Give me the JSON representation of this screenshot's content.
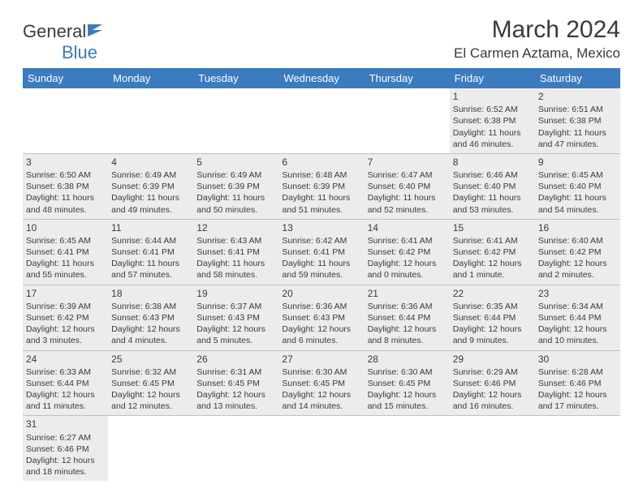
{
  "logo": {
    "word1": "General",
    "word2": "Blue"
  },
  "title": "March 2024",
  "location": "El Carmen Aztama, Mexico",
  "colors": {
    "header_bg": "#3b7bbf",
    "header_text": "#ffffff",
    "text": "#3a3a3a",
    "shaded_bg": "#ececec",
    "cell_border": "#b8c4d0",
    "logo_blue": "#3b7bbf"
  },
  "day_headers": [
    "Sunday",
    "Monday",
    "Tuesday",
    "Wednesday",
    "Thursday",
    "Friday",
    "Saturday"
  ],
  "weeks": [
    [
      null,
      null,
      null,
      null,
      null,
      {
        "n": "1",
        "sr": "Sunrise: 6:52 AM",
        "ss": "Sunset: 6:38 PM",
        "dl": "Daylight: 11 hours and 46 minutes."
      },
      {
        "n": "2",
        "sr": "Sunrise: 6:51 AM",
        "ss": "Sunset: 6:38 PM",
        "dl": "Daylight: 11 hours and 47 minutes."
      }
    ],
    [
      {
        "n": "3",
        "sr": "Sunrise: 6:50 AM",
        "ss": "Sunset: 6:38 PM",
        "dl": "Daylight: 11 hours and 48 minutes."
      },
      {
        "n": "4",
        "sr": "Sunrise: 6:49 AM",
        "ss": "Sunset: 6:39 PM",
        "dl": "Daylight: 11 hours and 49 minutes."
      },
      {
        "n": "5",
        "sr": "Sunrise: 6:49 AM",
        "ss": "Sunset: 6:39 PM",
        "dl": "Daylight: 11 hours and 50 minutes."
      },
      {
        "n": "6",
        "sr": "Sunrise: 6:48 AM",
        "ss": "Sunset: 6:39 PM",
        "dl": "Daylight: 11 hours and 51 minutes."
      },
      {
        "n": "7",
        "sr": "Sunrise: 6:47 AM",
        "ss": "Sunset: 6:40 PM",
        "dl": "Daylight: 11 hours and 52 minutes."
      },
      {
        "n": "8",
        "sr": "Sunrise: 6:46 AM",
        "ss": "Sunset: 6:40 PM",
        "dl": "Daylight: 11 hours and 53 minutes."
      },
      {
        "n": "9",
        "sr": "Sunrise: 6:45 AM",
        "ss": "Sunset: 6:40 PM",
        "dl": "Daylight: 11 hours and 54 minutes."
      }
    ],
    [
      {
        "n": "10",
        "sr": "Sunrise: 6:45 AM",
        "ss": "Sunset: 6:41 PM",
        "dl": "Daylight: 11 hours and 55 minutes."
      },
      {
        "n": "11",
        "sr": "Sunrise: 6:44 AM",
        "ss": "Sunset: 6:41 PM",
        "dl": "Daylight: 11 hours and 57 minutes."
      },
      {
        "n": "12",
        "sr": "Sunrise: 6:43 AM",
        "ss": "Sunset: 6:41 PM",
        "dl": "Daylight: 11 hours and 58 minutes."
      },
      {
        "n": "13",
        "sr": "Sunrise: 6:42 AM",
        "ss": "Sunset: 6:41 PM",
        "dl": "Daylight: 11 hours and 59 minutes."
      },
      {
        "n": "14",
        "sr": "Sunrise: 6:41 AM",
        "ss": "Sunset: 6:42 PM",
        "dl": "Daylight: 12 hours and 0 minutes."
      },
      {
        "n": "15",
        "sr": "Sunrise: 6:41 AM",
        "ss": "Sunset: 6:42 PM",
        "dl": "Daylight: 12 hours and 1 minute."
      },
      {
        "n": "16",
        "sr": "Sunrise: 6:40 AM",
        "ss": "Sunset: 6:42 PM",
        "dl": "Daylight: 12 hours and 2 minutes."
      }
    ],
    [
      {
        "n": "17",
        "sr": "Sunrise: 6:39 AM",
        "ss": "Sunset: 6:42 PM",
        "dl": "Daylight: 12 hours and 3 minutes."
      },
      {
        "n": "18",
        "sr": "Sunrise: 6:38 AM",
        "ss": "Sunset: 6:43 PM",
        "dl": "Daylight: 12 hours and 4 minutes."
      },
      {
        "n": "19",
        "sr": "Sunrise: 6:37 AM",
        "ss": "Sunset: 6:43 PM",
        "dl": "Daylight: 12 hours and 5 minutes."
      },
      {
        "n": "20",
        "sr": "Sunrise: 6:36 AM",
        "ss": "Sunset: 6:43 PM",
        "dl": "Daylight: 12 hours and 6 minutes."
      },
      {
        "n": "21",
        "sr": "Sunrise: 6:36 AM",
        "ss": "Sunset: 6:44 PM",
        "dl": "Daylight: 12 hours and 8 minutes."
      },
      {
        "n": "22",
        "sr": "Sunrise: 6:35 AM",
        "ss": "Sunset: 6:44 PM",
        "dl": "Daylight: 12 hours and 9 minutes."
      },
      {
        "n": "23",
        "sr": "Sunrise: 6:34 AM",
        "ss": "Sunset: 6:44 PM",
        "dl": "Daylight: 12 hours and 10 minutes."
      }
    ],
    [
      {
        "n": "24",
        "sr": "Sunrise: 6:33 AM",
        "ss": "Sunset: 6:44 PM",
        "dl": "Daylight: 12 hours and 11 minutes."
      },
      {
        "n": "25",
        "sr": "Sunrise: 6:32 AM",
        "ss": "Sunset: 6:45 PM",
        "dl": "Daylight: 12 hours and 12 minutes."
      },
      {
        "n": "26",
        "sr": "Sunrise: 6:31 AM",
        "ss": "Sunset: 6:45 PM",
        "dl": "Daylight: 12 hours and 13 minutes."
      },
      {
        "n": "27",
        "sr": "Sunrise: 6:30 AM",
        "ss": "Sunset: 6:45 PM",
        "dl": "Daylight: 12 hours and 14 minutes."
      },
      {
        "n": "28",
        "sr": "Sunrise: 6:30 AM",
        "ss": "Sunset: 6:45 PM",
        "dl": "Daylight: 12 hours and 15 minutes."
      },
      {
        "n": "29",
        "sr": "Sunrise: 6:29 AM",
        "ss": "Sunset: 6:46 PM",
        "dl": "Daylight: 12 hours and 16 minutes."
      },
      {
        "n": "30",
        "sr": "Sunrise: 6:28 AM",
        "ss": "Sunset: 6:46 PM",
        "dl": "Daylight: 12 hours and 17 minutes."
      }
    ],
    [
      {
        "n": "31",
        "sr": "Sunrise: 6:27 AM",
        "ss": "Sunset: 6:46 PM",
        "dl": "Daylight: 12 hours and 18 minutes."
      },
      null,
      null,
      null,
      null,
      null,
      null
    ]
  ]
}
